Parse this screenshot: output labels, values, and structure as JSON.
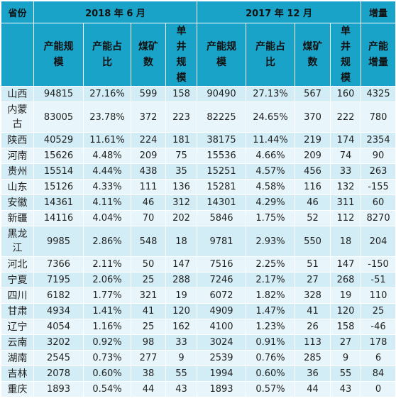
{
  "header": {
    "province": "省份",
    "period_2018": "2018 年 6 月",
    "period_2017": "2017 年 12 月",
    "increment": "增量",
    "capacity_scale": "产能规模",
    "capacity_share": "产能占比",
    "mine_count": "煤矿数",
    "single_mine_scale": "单井规模",
    "capacity_increment": "产能增量"
  },
  "rows": [
    {
      "province": "山西",
      "cap18": "94815",
      "share18": "27.16%",
      "mines18": "599",
      "single18": "158",
      "cap17": "90490",
      "share17": "27.13%",
      "mines17": "567",
      "single17": "160",
      "inc": "4325"
    },
    {
      "province": "内蒙古",
      "cap18": "83005",
      "share18": "23.78%",
      "mines18": "372",
      "single18": "223",
      "cap17": "82225",
      "share17": "24.65%",
      "mines17": "370",
      "single17": "222",
      "inc": "780"
    },
    {
      "province": "陕西",
      "cap18": "40529",
      "share18": "11.61%",
      "mines18": "224",
      "single18": "181",
      "cap17": "38175",
      "share17": "11.44%",
      "mines17": "219",
      "single17": "174",
      "inc": "2354"
    },
    {
      "province": "河南",
      "cap18": "15626",
      "share18": "4.48%",
      "mines18": "209",
      "single18": "75",
      "cap17": "15536",
      "share17": "4.66%",
      "mines17": "209",
      "single17": "74",
      "inc": "90"
    },
    {
      "province": "贵州",
      "cap18": "15514",
      "share18": "4.44%",
      "mines18": "438",
      "single18": "35",
      "cap17": "15251",
      "share17": "4.57%",
      "mines17": "456",
      "single17": "33",
      "inc": "263"
    },
    {
      "province": "山东",
      "cap18": "15126",
      "share18": "4.33%",
      "mines18": "111",
      "single18": "136",
      "cap17": "15281",
      "share17": "4.58%",
      "mines17": "116",
      "single17": "132",
      "inc": "-155"
    },
    {
      "province": "安徽",
      "cap18": "14361",
      "share18": "4.11%",
      "mines18": "46",
      "single18": "312",
      "cap17": "14301",
      "share17": "4.29%",
      "mines17": "46",
      "single17": "311",
      "inc": "60"
    },
    {
      "province": "新疆",
      "cap18": "14116",
      "share18": "4.04%",
      "mines18": "70",
      "single18": "202",
      "cap17": "5846",
      "share17": "1.75%",
      "mines17": "52",
      "single17": "112",
      "inc": "8270"
    },
    {
      "province": "黑龙江",
      "cap18": "9985",
      "share18": "2.86%",
      "mines18": "548",
      "single18": "18",
      "cap17": "9781",
      "share17": "2.93%",
      "mines17": "550",
      "single17": "18",
      "inc": "204"
    },
    {
      "province": "河北",
      "cap18": "7366",
      "share18": "2.11%",
      "mines18": "50",
      "single18": "147",
      "cap17": "7516",
      "share17": "2.25%",
      "mines17": "51",
      "single17": "147",
      "inc": "-150"
    },
    {
      "province": "宁夏",
      "cap18": "7195",
      "share18": "2.06%",
      "mines18": "25",
      "single18": "288",
      "cap17": "7246",
      "share17": "2.17%",
      "mines17": "27",
      "single17": "268",
      "inc": "-51"
    },
    {
      "province": "四川",
      "cap18": "6182",
      "share18": "1.77%",
      "mines18": "321",
      "single18": "19",
      "cap17": "6072",
      "share17": "1.82%",
      "mines17": "328",
      "single17": "19",
      "inc": "110"
    },
    {
      "province": "甘肃",
      "cap18": "4934",
      "share18": "1.41%",
      "mines18": "41",
      "single18": "120",
      "cap17": "4909",
      "share17": "1.47%",
      "mines17": "41",
      "single17": "120",
      "inc": "25"
    },
    {
      "province": "辽宁",
      "cap18": "4054",
      "share18": "1.16%",
      "mines18": "25",
      "single18": "162",
      "cap17": "4100",
      "share17": "1.23%",
      "mines17": "26",
      "single17": "158",
      "inc": "-46"
    },
    {
      "province": "云南",
      "cap18": "3202",
      "share18": "0.92%",
      "mines18": "98",
      "single18": "33",
      "cap17": "3024",
      "share17": "0.91%",
      "mines17": "113",
      "single17": "27",
      "inc": "178"
    },
    {
      "province": "湖南",
      "cap18": "2545",
      "share18": "0.73%",
      "mines18": "277",
      "single18": "9",
      "cap17": "2539",
      "share17": "0.76%",
      "mines17": "285",
      "single17": "9",
      "inc": "6"
    },
    {
      "province": "吉林",
      "cap18": "2078",
      "share18": "0.60%",
      "mines18": "38",
      "single18": "55",
      "cap17": "1994",
      "share17": "0.60%",
      "mines17": "36",
      "single17": "55",
      "inc": "84"
    },
    {
      "province": "重庆",
      "cap18": "1893",
      "share18": "0.54%",
      "mines18": "44",
      "single18": "43",
      "cap17": "1893",
      "share17": "0.57%",
      "mines17": "44",
      "single17": "43",
      "inc": "0"
    }
  ]
}
